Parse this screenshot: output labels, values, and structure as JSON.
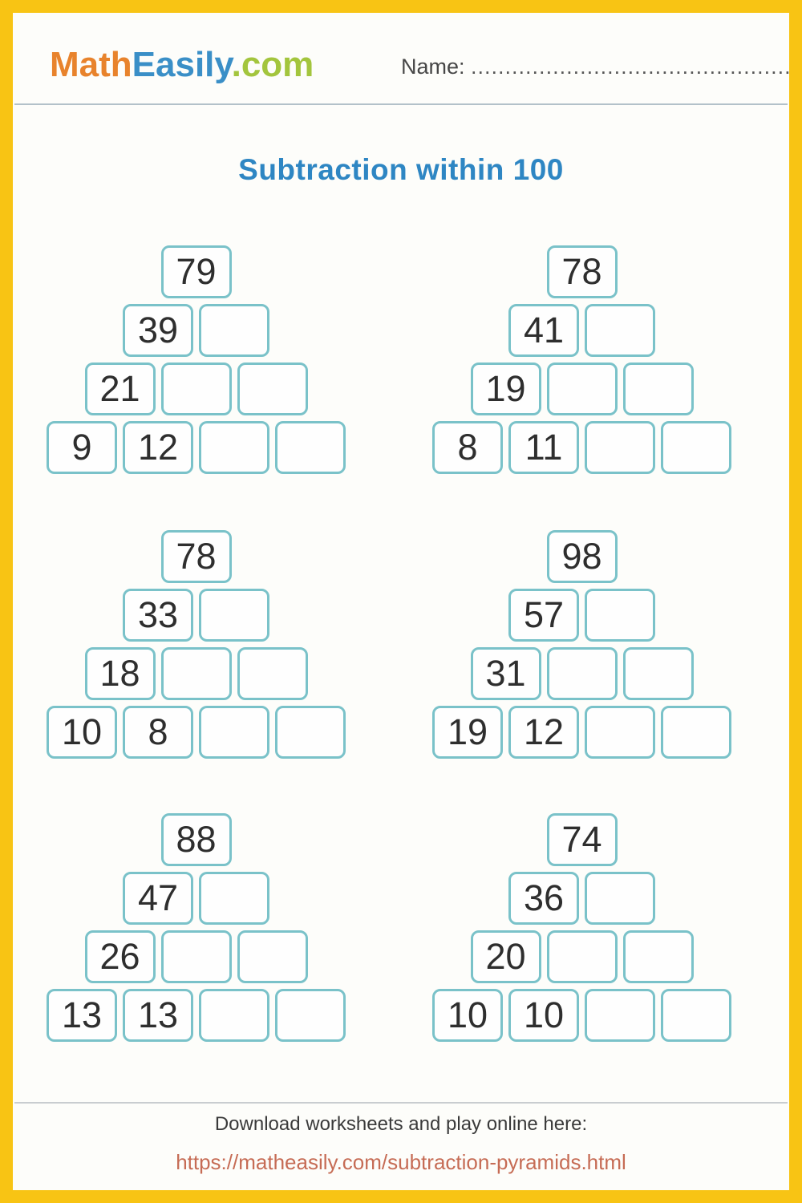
{
  "page": {
    "frame_color": "#f8c414",
    "background": "#fdfdfa",
    "box_border_color": "#7ac2c9",
    "title_color": "#2e86c3",
    "url_color": "#c66c55"
  },
  "header": {
    "logo": {
      "math": "Math",
      "easily": "Easily",
      "com": ".com",
      "math_color": "#e8832c",
      "easily_color": "#3a8fc7",
      "com_color": "#a3c53d"
    },
    "name_label": "Name:",
    "name_dots": "................................................"
  },
  "title": "Subtraction within 100",
  "pyramids": [
    {
      "rows": [
        [
          "79"
        ],
        [
          "39",
          null
        ],
        [
          "21",
          null,
          null
        ],
        [
          "9",
          "12",
          null,
          null
        ]
      ]
    },
    {
      "rows": [
        [
          "78"
        ],
        [
          "41",
          null
        ],
        [
          "19",
          null,
          null
        ],
        [
          "8",
          "11",
          null,
          null
        ]
      ]
    },
    {
      "rows": [
        [
          "78"
        ],
        [
          "33",
          null
        ],
        [
          "18",
          null,
          null
        ],
        [
          "10",
          "8",
          null,
          null
        ]
      ]
    },
    {
      "rows": [
        [
          "98"
        ],
        [
          "57",
          null
        ],
        [
          "31",
          null,
          null
        ],
        [
          "19",
          "12",
          null,
          null
        ]
      ]
    },
    {
      "rows": [
        [
          "88"
        ],
        [
          "47",
          null
        ],
        [
          "26",
          null,
          null
        ],
        [
          "13",
          "13",
          null,
          null
        ]
      ]
    },
    {
      "rows": [
        [
          "74"
        ],
        [
          "36",
          null
        ],
        [
          "20",
          null,
          null
        ],
        [
          "10",
          "10",
          null,
          null
        ]
      ]
    }
  ],
  "footer": {
    "text": "Download worksheets and play online here:",
    "url": "https://matheasily.com/subtraction-pyramids.html"
  }
}
